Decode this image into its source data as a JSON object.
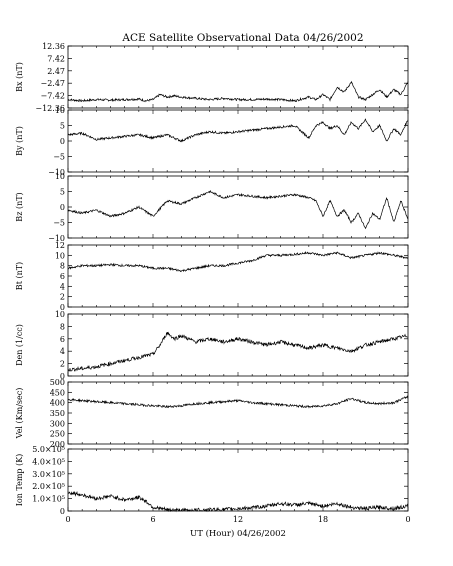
{
  "title": "ACE Satellite Observational Data   04/26/2002",
  "xlabel": "UT (Hour)  04/26/2002",
  "x_ticks": [
    "0",
    "6",
    "12",
    "18",
    "0"
  ],
  "chart_data": {
    "type": "line",
    "x_range_hours": [
      0,
      24
    ],
    "panels": [
      {
        "id": "bx",
        "ylabel": "Bx (nT)",
        "ylim": [
          -12.36,
          12.36
        ],
        "tick_values": [
          12.36,
          7.42,
          2.47,
          -2.47,
          -7.42,
          -12.36
        ],
        "tick_labels": [
          "12.36",
          "7.42",
          "2.47",
          "−2.47",
          "−7.42",
          "−12.36"
        ],
        "log": false,
        "x": [
          0,
          1,
          2,
          3,
          4,
          5,
          5.5,
          6,
          6.5,
          7,
          7.5,
          8,
          9,
          10,
          11,
          12,
          13,
          14,
          15,
          16,
          17,
          17.5,
          18,
          18.5,
          19,
          19.5,
          20,
          20.5,
          21,
          21.5,
          22,
          22.5,
          23,
          23.5,
          24
        ],
        "y": [
          -9,
          -9.5,
          -9,
          -9.2,
          -9,
          -8.8,
          -9.5,
          -9,
          -7,
          -8,
          -7.5,
          -8,
          -8.5,
          -9,
          -8.5,
          -9,
          -9,
          -8.8,
          -9,
          -9.5,
          -8,
          -9,
          -7,
          -9,
          -4,
          -6,
          -2,
          -8,
          -9,
          -7,
          -5,
          -8,
          -5,
          -7,
          -2
        ]
      },
      {
        "id": "by",
        "ylabel": "By (nT)",
        "ylim": [
          -10,
          10
        ],
        "tick_values": [
          10,
          5,
          0,
          -5,
          -10
        ],
        "tick_labels": [
          "10",
          "5",
          "0",
          "−5",
          "−10"
        ],
        "log": false,
        "x": [
          0,
          1,
          2,
          3,
          4,
          5,
          6,
          7,
          8,
          9,
          10,
          11,
          12,
          13,
          14,
          15,
          16,
          17,
          17.5,
          18,
          18.5,
          19,
          19.5,
          20,
          20.5,
          21,
          21.5,
          22,
          22.5,
          23,
          23.5,
          24
        ],
        "y": [
          2,
          2.5,
          0.5,
          1,
          1.5,
          2,
          1,
          2,
          0,
          2,
          3,
          2.5,
          3,
          3.5,
          4,
          4.5,
          5,
          1,
          5,
          6,
          4,
          5,
          2,
          6,
          4,
          7,
          3,
          5,
          0,
          4,
          2,
          7
        ]
      },
      {
        "id": "bz",
        "ylabel": "Bz (nT)",
        "ylim": [
          -10,
          10
        ],
        "tick_values": [
          10,
          5,
          0,
          -5,
          -10
        ],
        "tick_labels": [
          "10",
          "5",
          "0",
          "−5",
          "−10"
        ],
        "log": false,
        "x": [
          0,
          1,
          2,
          3,
          4,
          5,
          6,
          7,
          8,
          9,
          10,
          11,
          12,
          13,
          14,
          15,
          16,
          17,
          17.5,
          18,
          18.5,
          19,
          19.5,
          20,
          20.5,
          21,
          21.5,
          22,
          22.5,
          23,
          23.5,
          24
        ],
        "y": [
          -1,
          -2,
          -1,
          -3,
          -2,
          0,
          -3,
          2,
          1,
          3,
          5,
          3,
          4,
          3.5,
          3,
          3.5,
          4,
          3,
          2,
          -3,
          2,
          -3,
          -1,
          -5,
          -2,
          -7,
          -2,
          -4,
          3,
          -5,
          2,
          -4
        ]
      },
      {
        "id": "bt",
        "ylabel": "Bt (nT)",
        "ylim": [
          0,
          12
        ],
        "tick_values": [
          12,
          10,
          8,
          6,
          4,
          2,
          0
        ],
        "tick_labels": [
          "12",
          "10",
          "8",
          "6",
          "4",
          "2",
          "0"
        ],
        "log": false,
        "x": [
          0,
          1,
          2,
          3,
          4,
          5,
          6,
          7,
          8,
          9,
          10,
          11,
          12,
          13,
          14,
          15,
          16,
          17,
          18,
          19,
          20,
          21,
          22,
          23,
          24
        ],
        "y": [
          7.5,
          8,
          8,
          8.2,
          8,
          8,
          7.5,
          7.5,
          7,
          7.5,
          8,
          8,
          8.5,
          9,
          10,
          10,
          10.2,
          10.5,
          10,
          10.5,
          9.5,
          10,
          10.5,
          10,
          9.5
        ]
      },
      {
        "id": "den",
        "ylabel": "Den (1/cc)",
        "ylim": [
          0,
          10
        ],
        "tick_values": [
          10,
          8,
          6,
          4,
          2,
          0
        ],
        "tick_labels": [
          "10",
          "8",
          "6",
          "4",
          "2",
          "0"
        ],
        "log": false,
        "x": [
          0,
          1,
          2,
          3,
          4,
          5,
          6,
          6.5,
          7,
          7.5,
          8,
          9,
          10,
          11,
          12,
          13,
          14,
          15,
          16,
          17,
          18,
          19,
          20,
          21,
          22,
          23,
          24
        ],
        "y": [
          1,
          1.2,
          1.5,
          2,
          2.5,
          3,
          3.5,
          5,
          7,
          6,
          6.5,
          5.5,
          6,
          5.5,
          6,
          5.5,
          5,
          5.5,
          5,
          4.5,
          5,
          4.5,
          4,
          5,
          5.5,
          6,
          6.5
        ]
      },
      {
        "id": "vel",
        "ylabel": "Vel (Km/sec)",
        "ylim": [
          200,
          500
        ],
        "tick_values": [
          500,
          450,
          400,
          350,
          300,
          250,
          200
        ],
        "tick_labels": [
          "500",
          "450",
          "400",
          "350",
          "300",
          "250",
          "200"
        ],
        "log": false,
        "x": [
          0,
          1,
          2,
          3,
          4,
          5,
          6,
          7,
          8,
          9,
          10,
          11,
          12,
          13,
          14,
          15,
          16,
          17,
          18,
          19,
          20,
          21,
          22,
          23,
          24
        ],
        "y": [
          415,
          410,
          405,
          400,
          395,
          390,
          385,
          380,
          385,
          395,
          400,
          405,
          410,
          400,
          395,
          390,
          385,
          380,
          385,
          395,
          420,
          400,
          395,
          400,
          430
        ]
      },
      {
        "id": "temp",
        "ylabel": "Ion Temp (K)",
        "ylim": [
          0,
          500000
        ],
        "tick_values": [
          500000,
          400000,
          300000,
          200000,
          100000,
          0
        ],
        "tick_labels": [
          "5.0×10⁵",
          "4.0×10⁵",
          "3.0×10⁵",
          "2.0×10⁵",
          "1.0×10⁵",
          "0"
        ],
        "log": false,
        "x": [
          0,
          1,
          2,
          3,
          4,
          5,
          5.5,
          6,
          7,
          8,
          9,
          10,
          11,
          12,
          13,
          14,
          15,
          16,
          17,
          18,
          19,
          20,
          21,
          22,
          23,
          24
        ],
        "y": [
          150000,
          130000,
          100000,
          120000,
          90000,
          110000,
          80000,
          30000,
          10000,
          5000,
          8000,
          10000,
          12000,
          20000,
          25000,
          40000,
          60000,
          50000,
          60000,
          40000,
          60000,
          30000,
          20000,
          30000,
          20000,
          40000
        ]
      }
    ]
  }
}
